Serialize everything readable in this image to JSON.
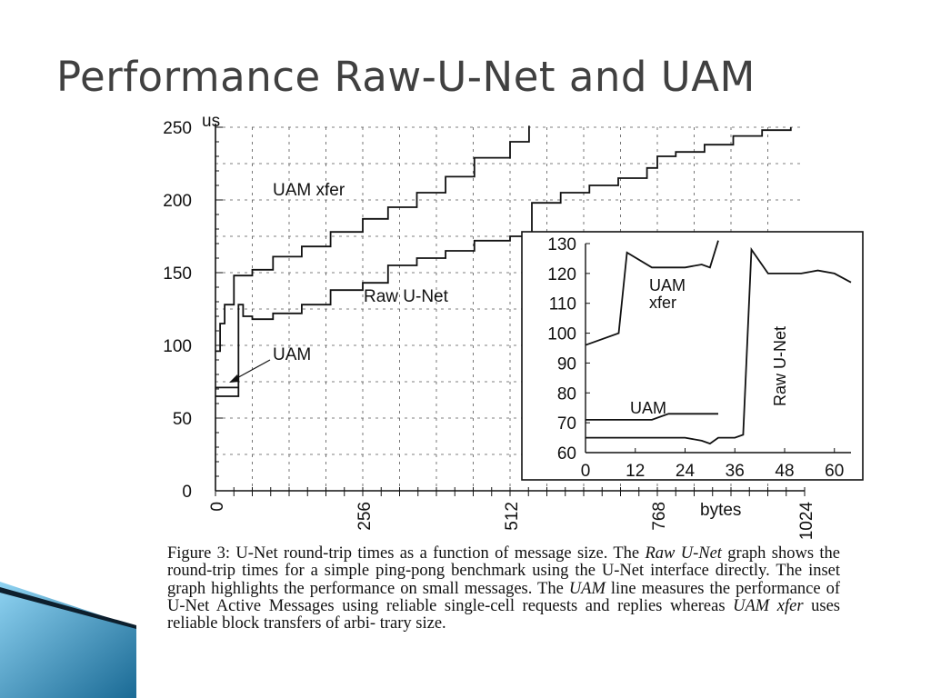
{
  "slide": {
    "title": "Performance Raw-U-Net and UAM"
  },
  "colors": {
    "title_text": "#404040",
    "ink": "#111111",
    "accent_light": "#8fd3f2",
    "accent_dark": "#1a6a95"
  },
  "chart_data": [
    {
      "type": "line",
      "ylabel": "us",
      "xlabel": "bytes",
      "xlim": [
        0,
        1024
      ],
      "ylim": [
        0,
        250
      ],
      "xticks": [
        "0",
        "256",
        "512",
        "768",
        "1024"
      ],
      "yticks": [
        "0",
        "50",
        "100",
        "150",
        "200",
        "250"
      ],
      "grid": true,
      "series": [
        {
          "name": "UAM xfer",
          "x": [
            0,
            8,
            16,
            32,
            64,
            100,
            150,
            200,
            256,
            300,
            350,
            400,
            450,
            512,
            545
          ],
          "y": [
            96,
            115,
            128,
            148,
            152,
            161,
            168,
            178,
            187,
            195,
            205,
            216,
            229,
            240,
            251
          ]
        },
        {
          "name": "Raw U-Net",
          "x": [
            0,
            32,
            40,
            48,
            64,
            100,
            150,
            200,
            256,
            300,
            350,
            400,
            450,
            512,
            550,
            600,
            650,
            700,
            750,
            768,
            800,
            850,
            900,
            950,
            1000
          ],
          "y": [
            65,
            65,
            128,
            120,
            118,
            122,
            128,
            138,
            143,
            155,
            160,
            165,
            172,
            175,
            198,
            205,
            210,
            215,
            222,
            230,
            233,
            238,
            244,
            248,
            250
          ]
        },
        {
          "name": "UAM",
          "x": [
            0,
            40
          ],
          "y": [
            71,
            71
          ]
        }
      ],
      "annotations": [
        "UAM xfer",
        "Raw U-Net",
        "UAM"
      ]
    },
    {
      "type": "line",
      "inset": true,
      "xlim": [
        0,
        64
      ],
      "ylim": [
        60,
        130
      ],
      "xticks": [
        "0",
        "12",
        "24",
        "36",
        "48",
        "60"
      ],
      "yticks": [
        "60",
        "70",
        "80",
        "90",
        "100",
        "110",
        "120",
        "130"
      ],
      "series": [
        {
          "name": "UAM xfer",
          "x": [
            0,
            8,
            10,
            16,
            20,
            24,
            28,
            30,
            32
          ],
          "y": [
            96,
            100,
            127,
            122,
            122,
            122,
            123,
            122,
            131
          ]
        },
        {
          "name": "Raw U-Net",
          "x": [
            0,
            4,
            8,
            12,
            16,
            20,
            24,
            28,
            30,
            32,
            36,
            38,
            40,
            44,
            48,
            52,
            56,
            60,
            64
          ],
          "y": [
            65,
            65,
            65,
            65,
            65,
            65,
            65,
            64,
            63,
            65,
            65,
            66,
            128,
            120,
            120,
            120,
            121,
            120,
            117
          ]
        },
        {
          "name": "UAM",
          "x": [
            0,
            8,
            16,
            20,
            24,
            28,
            32
          ],
          "y": [
            71,
            71,
            71,
            73,
            73,
            73,
            73
          ]
        }
      ],
      "annotations": [
        "UAM",
        "xfer",
        "UAM",
        "Raw U-Net"
      ]
    }
  ],
  "caption": {
    "line1": "Figure 3: U-Net round-trip times as a function of message",
    "line2_a": "size. The ",
    "line2_em": "Raw U-Net",
    "line2_b": " graph shows the round-trip times for a",
    "line3": "simple ping-pong benchmark using the U-Net interface",
    "line4": "directly. The inset graph highlights the performance on small",
    "line5_a": "messages. The ",
    "line5_em": "UAM",
    "line5_b": " line measures the performance of U-Net",
    "line6": "Active Messages using reliable single-cell requests and",
    "line7_a": "replies whereas ",
    "line7_em": "UAM xfer",
    "line7_b": " uses reliable block transfers of arbi-",
    "line8": "trary size."
  }
}
